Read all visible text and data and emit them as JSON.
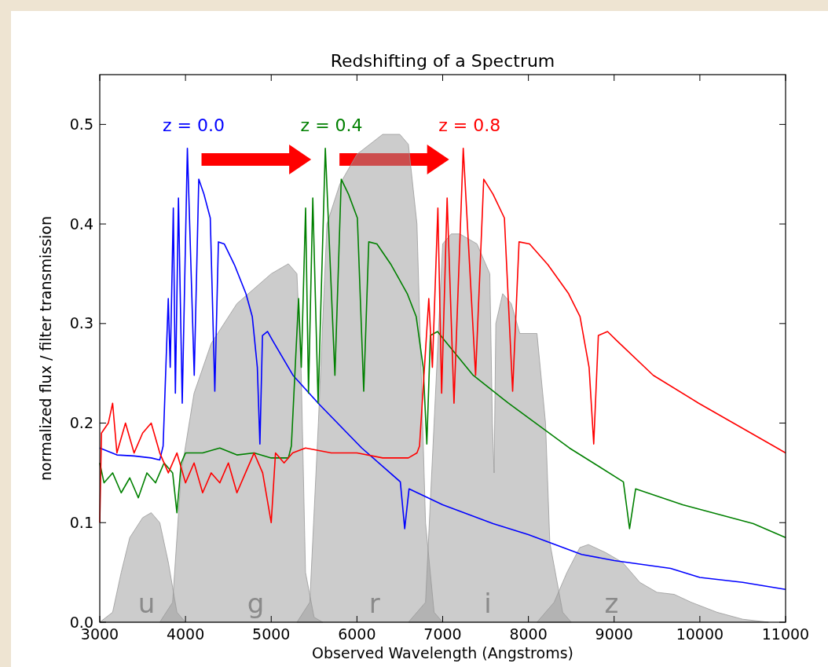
{
  "chart_data": {
    "type": "line",
    "title": "Redshifting of a Spectrum",
    "xlabel": "Observed Wavelength (Angstroms)",
    "ylabel": "normalized flux / filter transmission",
    "xlim": [
      3000,
      11000
    ],
    "xticks": [
      3000,
      4000,
      5000,
      6000,
      7000,
      8000,
      9000,
      10000,
      11000
    ],
    "ylim": [
      0,
      0.55
    ],
    "yticks": [
      {
        "value": 0,
        "label": "0.0"
      },
      0.1,
      0.2,
      0.3,
      0.4,
      0.5
    ],
    "series": [
      {
        "name": "u",
        "type": "area",
        "color": "#999999",
        "x": [
          3000,
          3150,
          3250,
          3350,
          3500,
          3600,
          3700,
          3800,
          3900,
          4000
        ],
        "values": [
          0,
          0.01,
          0.05,
          0.085,
          0.105,
          0.11,
          0.1,
          0.06,
          0.01,
          0
        ]
      },
      {
        "name": "g",
        "type": "area",
        "color": "#999999",
        "x": [
          3700,
          3850,
          3950,
          4100,
          4300,
          4600,
          5000,
          5200,
          5300,
          5350,
          5400,
          5500,
          5600
        ],
        "values": [
          0,
          0.02,
          0.15,
          0.23,
          0.28,
          0.32,
          0.35,
          0.36,
          0.35,
          0.25,
          0.05,
          0.005,
          0
        ]
      },
      {
        "name": "r",
        "type": "area",
        "color": "#999999",
        "x": [
          5300,
          5450,
          5550,
          5650,
          5800,
          6000,
          6300,
          6500,
          6600,
          6700,
          6800,
          6900,
          7000
        ],
        "values": [
          0,
          0.02,
          0.2,
          0.4,
          0.44,
          0.47,
          0.49,
          0.49,
          0.48,
          0.4,
          0.1,
          0.01,
          0
        ]
      },
      {
        "name": "i",
        "type": "area",
        "color": "#999999",
        "x": [
          6600,
          6800,
          6900,
          7000,
          7100,
          7200,
          7400,
          7550,
          7580,
          7600,
          7620,
          7700,
          7800,
          7900,
          8100,
          8200,
          8250,
          8400,
          8500
        ],
        "values": [
          0,
          0.02,
          0.2,
          0.38,
          0.39,
          0.39,
          0.38,
          0.35,
          0.2,
          0.15,
          0.3,
          0.33,
          0.32,
          0.29,
          0.29,
          0.2,
          0.08,
          0.01,
          0
        ]
      },
      {
        "name": "z",
        "type": "area",
        "color": "#999999",
        "x": [
          8100,
          8300,
          8450,
          8600,
          8700,
          8900,
          9100,
          9300,
          9500,
          9700,
          9900,
          10200,
          10500,
          10800
        ],
        "values": [
          0,
          0.02,
          0.05,
          0.075,
          0.078,
          0.07,
          0.06,
          0.04,
          0.03,
          0.028,
          0.02,
          0.01,
          0.003,
          0
        ]
      },
      {
        "name": "z = 0.0",
        "color": "#0000ff",
        "x": [
          3000,
          3200,
          3400,
          3600,
          3700,
          3739,
          3799,
          3822,
          3858,
          3882,
          3918,
          3962,
          4022,
          4102,
          4155,
          4215,
          4289,
          4342,
          4384,
          4452,
          4571,
          4705,
          4779,
          4838,
          4868,
          4898,
          4957,
          5016,
          5254,
          5548,
          6056,
          6506,
          6557,
          6608,
          7000,
          7588,
          8000,
          8621,
          9000,
          9659,
          10000,
          10500,
          11000
        ],
        "values": [
          0.175,
          0.168,
          0.167,
          0.165,
          0.163,
          0.177,
          0.325,
          0.256,
          0.416,
          0.23,
          0.426,
          0.22,
          0.476,
          0.248,
          0.445,
          0.43,
          0.406,
          0.232,
          0.382,
          0.38,
          0.359,
          0.33,
          0.307,
          0.256,
          0.179,
          0.288,
          0.292,
          0.283,
          0.248,
          0.22,
          0.175,
          0.141,
          0.094,
          0.134,
          0.118,
          0.099,
          0.088,
          0.068,
          0.062,
          0.054,
          0.045,
          0.04,
          0.033
        ]
      },
      {
        "name": "z = 0.4",
        "color": "#008000",
        "x": [
          3000,
          3050,
          3150,
          3250,
          3350,
          3450,
          3550,
          3650,
          3750,
          3850,
          3900,
          3950,
          4000,
          4200,
          4400,
          4600,
          4800,
          5000,
          5200,
          5235,
          5319,
          5351,
          5401,
          5435,
          5485,
          5547,
          5631,
          5743,
          5817,
          5901,
          6005,
          6079,
          6138,
          6233,
          6399,
          6587,
          6691,
          6773,
          6815,
          6857,
          6940,
          7022,
          7356,
          7767,
          8478,
          9108,
          9180,
          9251,
          9800,
          10623,
          11000
        ],
        "values": [
          0.16,
          0.14,
          0.15,
          0.13,
          0.145,
          0.125,
          0.15,
          0.14,
          0.16,
          0.15,
          0.11,
          0.16,
          0.17,
          0.17,
          0.175,
          0.168,
          0.17,
          0.165,
          0.165,
          0.177,
          0.325,
          0.256,
          0.416,
          0.23,
          0.426,
          0.22,
          0.476,
          0.248,
          0.445,
          0.43,
          0.406,
          0.232,
          0.382,
          0.38,
          0.359,
          0.33,
          0.307,
          0.256,
          0.179,
          0.288,
          0.292,
          0.283,
          0.248,
          0.22,
          0.175,
          0.141,
          0.094,
          0.134,
          0.118,
          0.099,
          0.085
        ]
      },
      {
        "name": "z = 0.8",
        "color": "#ff0000",
        "x": [
          3000,
          3020,
          3100,
          3150,
          3200,
          3300,
          3400,
          3500,
          3600,
          3700,
          3800,
          3900,
          4000,
          4100,
          4200,
          4300,
          4400,
          4500,
          4600,
          4700,
          4800,
          4900,
          5000,
          5050,
          5150,
          5250,
          5400,
          5700,
          6000,
          6300,
          6600,
          6700,
          6730,
          6838,
          6880,
          6944,
          6988,
          7052,
          7132,
          7240,
          7384,
          7479,
          7587,
          7720,
          7816,
          7891,
          8014,
          8228,
          8469,
          8602,
          8708,
          8762,
          8816,
          8923,
          9029,
          9457,
          9986,
          10901,
          11000
        ],
        "values": [
          0.1,
          0.19,
          0.2,
          0.22,
          0.17,
          0.2,
          0.17,
          0.19,
          0.2,
          0.17,
          0.15,
          0.17,
          0.14,
          0.16,
          0.13,
          0.15,
          0.14,
          0.16,
          0.13,
          0.15,
          0.17,
          0.15,
          0.1,
          0.17,
          0.16,
          0.17,
          0.175,
          0.17,
          0.17,
          0.165,
          0.165,
          0.17,
          0.177,
          0.325,
          0.256,
          0.416,
          0.23,
          0.426,
          0.22,
          0.476,
          0.248,
          0.445,
          0.43,
          0.406,
          0.232,
          0.382,
          0.38,
          0.359,
          0.33,
          0.307,
          0.256,
          0.179,
          0.288,
          0.292,
          0.283,
          0.248,
          0.22,
          0.175,
          0.17
        ]
      }
    ]
  }
}
